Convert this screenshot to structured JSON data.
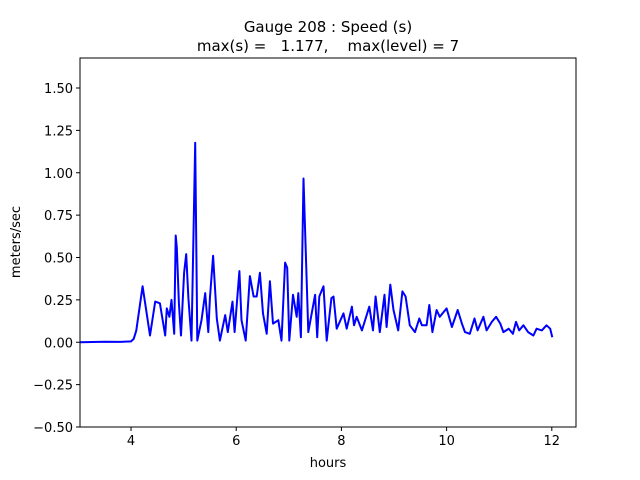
{
  "chart_data": {
    "type": "line",
    "title_line1": "Gauge 208 : Speed (s)",
    "title_line2": "max(s) =   1.177,    max(level) = 7",
    "xlabel": "hours",
    "ylabel": "meters/sec",
    "xlim": [
      3.03,
      12.46
    ],
    "ylim": [
      -0.5,
      1.677
    ],
    "xticks": [
      4,
      6,
      8,
      10,
      12
    ],
    "xtick_labels": [
      "4",
      "6",
      "8",
      "10",
      "12"
    ],
    "yticks": [
      -0.5,
      -0.25,
      0.0,
      0.25,
      0.5,
      0.75,
      1.0,
      1.25,
      1.5
    ],
    "ytick_labels": [
      "−0.50",
      "−0.25",
      "0.00",
      "0.25",
      "0.50",
      "0.75",
      "1.00",
      "1.25",
      "1.50"
    ],
    "grid": false,
    "series": [
      {
        "name": "speed",
        "color": "#0000ff",
        "x": [
          3.03,
          3.5,
          3.8,
          4.0,
          4.05,
          4.1,
          4.22,
          4.36,
          4.46,
          4.55,
          4.65,
          4.68,
          4.73,
          4.77,
          4.82,
          4.85,
          4.87,
          4.91,
          4.95,
          5.01,
          5.05,
          5.09,
          5.15,
          5.22,
          5.26,
          5.34,
          5.41,
          5.47,
          5.5,
          5.56,
          5.63,
          5.69,
          5.79,
          5.84,
          5.93,
          5.97,
          6.06,
          6.1,
          6.18,
          6.26,
          6.33,
          6.39,
          6.45,
          6.51,
          6.58,
          6.64,
          6.7,
          6.8,
          6.86,
          6.93,
          6.97,
          7.01,
          7.08,
          7.15,
          7.18,
          7.23,
          7.28,
          7.31,
          7.37,
          7.5,
          7.54,
          7.58,
          7.66,
          7.72,
          7.81,
          7.85,
          7.91,
          8.04,
          8.1,
          8.2,
          8.24,
          8.29,
          8.39,
          8.53,
          8.6,
          8.65,
          8.73,
          8.82,
          8.86,
          8.93,
          8.99,
          9.08,
          9.16,
          9.22,
          9.3,
          9.4,
          9.48,
          9.53,
          9.62,
          9.67,
          9.73,
          9.81,
          9.87,
          10.0,
          10.1,
          10.21,
          10.29,
          10.35,
          10.44,
          10.53,
          10.59,
          10.7,
          10.76,
          10.86,
          10.94,
          11.02,
          11.08,
          11.18,
          11.26,
          11.32,
          11.38,
          11.46,
          11.55,
          11.65,
          11.71,
          11.81,
          11.9,
          11.97,
          12.01
        ],
        "y": [
          0.0,
          0.003,
          0.002,
          0.005,
          0.02,
          0.07,
          0.33,
          0.04,
          0.24,
          0.23,
          0.04,
          0.2,
          0.15,
          0.25,
          0.05,
          0.63,
          0.56,
          0.23,
          0.04,
          0.41,
          0.52,
          0.26,
          0.01,
          1.177,
          0.01,
          0.13,
          0.29,
          0.06,
          0.26,
          0.51,
          0.14,
          0.01,
          0.16,
          0.06,
          0.24,
          0.06,
          0.42,
          0.13,
          0.01,
          0.39,
          0.27,
          0.27,
          0.41,
          0.17,
          0.05,
          0.36,
          0.11,
          0.13,
          0.01,
          0.47,
          0.44,
          0.01,
          0.28,
          0.15,
          0.29,
          0.03,
          0.966,
          0.66,
          0.06,
          0.28,
          0.03,
          0.27,
          0.33,
          0.01,
          0.26,
          0.27,
          0.08,
          0.17,
          0.08,
          0.21,
          0.1,
          0.15,
          0.07,
          0.21,
          0.07,
          0.27,
          0.06,
          0.28,
          0.09,
          0.34,
          0.19,
          0.07,
          0.3,
          0.27,
          0.1,
          0.06,
          0.14,
          0.1,
          0.1,
          0.22,
          0.06,
          0.19,
          0.15,
          0.2,
          0.09,
          0.19,
          0.11,
          0.06,
          0.05,
          0.14,
          0.07,
          0.15,
          0.07,
          0.12,
          0.15,
          0.11,
          0.06,
          0.08,
          0.05,
          0.12,
          0.07,
          0.1,
          0.06,
          0.04,
          0.08,
          0.07,
          0.1,
          0.08,
          0.03
        ]
      }
    ]
  }
}
